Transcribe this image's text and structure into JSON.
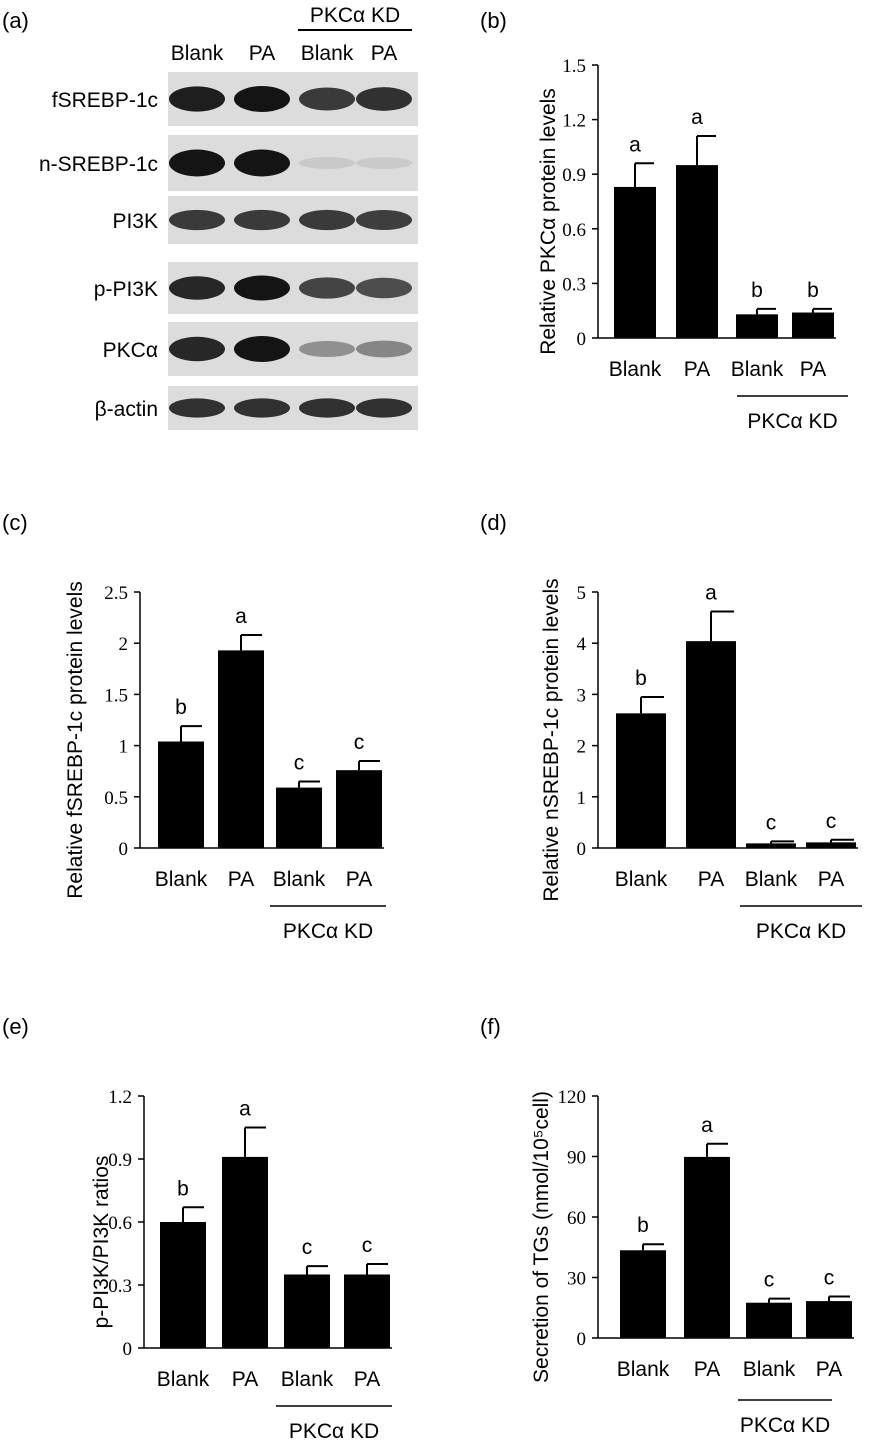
{
  "blot": {
    "panel_label": "(a)",
    "header": {
      "columns": [
        "Blank",
        "PA",
        "Blank",
        "PA"
      ],
      "group_label": "PKCα KD"
    },
    "rows": [
      {
        "label": "fSREBP-1c",
        "intensity": [
          0.95,
          1.0,
          0.8,
          0.85
        ]
      },
      {
        "label": "n-SREBP-1c",
        "intensity": [
          1.0,
          1.0,
          0.05,
          0.04
        ]
      },
      {
        "label": "PI3K",
        "intensity": [
          0.8,
          0.8,
          0.8,
          0.78
        ]
      },
      {
        "label": "p-PI3K",
        "intensity": [
          0.9,
          1.0,
          0.75,
          0.7
        ]
      },
      {
        "label": "PKCα",
        "intensity": [
          0.9,
          1.0,
          0.35,
          0.4
        ]
      },
      {
        "label": "β-actin",
        "intensity": [
          0.85,
          0.85,
          0.85,
          0.85
        ]
      }
    ]
  },
  "chart_data": [
    {
      "panel_label": "(b)",
      "type": "bar",
      "categories": [
        "Blank",
        "PA",
        "Blank",
        "PA"
      ],
      "group_label": "PKCα KD",
      "values": [
        0.83,
        0.95,
        0.13,
        0.14
      ],
      "errors": [
        0.13,
        0.16,
        0.03,
        0.02
      ],
      "significance": [
        "a",
        "a",
        "b",
        "b"
      ],
      "ylabel": "Relative PKCα protein levels",
      "yticks": [
        "0",
        "0.3",
        "0.6",
        "0.9",
        "1.2",
        "1.5"
      ],
      "ylim": [
        0,
        1.5
      ]
    },
    {
      "panel_label": "(c)",
      "type": "bar",
      "categories": [
        "Blank",
        "PA",
        "Blank",
        "PA"
      ],
      "group_label": "PKCα KD",
      "values": [
        1.04,
        1.93,
        0.59,
        0.76
      ],
      "errors": [
        0.15,
        0.15,
        0.06,
        0.09
      ],
      "significance": [
        "b",
        "a",
        "c",
        "c"
      ],
      "ylabel": "Relative fSREBP-1c protein levels",
      "yticks": [
        "0",
        "0.5",
        "1",
        "1.5",
        "2",
        "2.5"
      ],
      "ylim": [
        0,
        2.5
      ]
    },
    {
      "panel_label": "(d)",
      "type": "bar",
      "categories": [
        "Blank",
        "PA",
        "Blank",
        "PA"
      ],
      "group_label": "PKCα KD",
      "values": [
        2.63,
        4.04,
        0.09,
        0.11
      ],
      "errors": [
        0.32,
        0.58,
        0.04,
        0.05
      ],
      "significance": [
        "b",
        "a",
        "c",
        "c"
      ],
      "ylabel": "Relative nSREBP-1c protein levels",
      "yticks": [
        "0",
        "1",
        "2",
        "3",
        "4",
        "5"
      ],
      "ylim": [
        0,
        5
      ]
    },
    {
      "panel_label": "(e)",
      "type": "bar",
      "categories": [
        "Blank",
        "PA",
        "Blank",
        "PA"
      ],
      "group_label": "PKCα KD",
      "values": [
        0.6,
        0.91,
        0.35,
        0.35
      ],
      "errors": [
        0.07,
        0.14,
        0.04,
        0.05
      ],
      "significance": [
        "b",
        "a",
        "c",
        "c"
      ],
      "ylabel": "p-PI3K/PI3K ratios",
      "yticks": [
        "0",
        "0.3",
        "0.6",
        "0.9",
        "1.2"
      ],
      "ylim": [
        0,
        1.2
      ]
    },
    {
      "panel_label": "(f)",
      "type": "bar",
      "categories": [
        "Blank",
        "PA",
        "Blank",
        "PA"
      ],
      "group_label": "PKCα KD",
      "values": [
        43.5,
        89.8,
        17.5,
        18.3
      ],
      "errors": [
        3.0,
        6.5,
        2.0,
        2.3
      ],
      "significance": [
        "b",
        "a",
        "c",
        "c"
      ],
      "ylabel": "Secretion of  TGs  (nmol/10⁵cell)",
      "yticks": [
        "0",
        "30",
        "60",
        "90",
        "120"
      ],
      "ylim": [
        0,
        120
      ]
    }
  ]
}
